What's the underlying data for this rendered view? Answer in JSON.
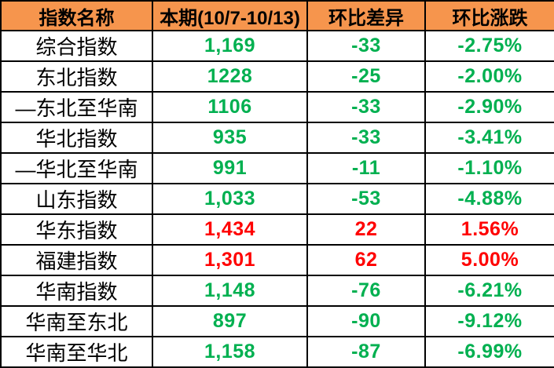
{
  "colors": {
    "header_bg": "#F6954D",
    "up": "#FF0000",
    "down": "#00B050",
    "grid": "#000000",
    "header_text": "#000000"
  },
  "chart_data": {
    "type": "table",
    "title": "",
    "columns": [
      "指数名称",
      "本期(10/7-10/13)",
      "环比差异",
      "环比涨跌"
    ],
    "rows": [
      {
        "name": "综合指数",
        "current": "1,169",
        "diff": "-33",
        "change": "-2.75%"
      },
      {
        "name": "东北指数",
        "current": "1228",
        "diff": "-25",
        "change": "-2.00%"
      },
      {
        "name": "—东北至华南",
        "current": "1106",
        "diff": "-33",
        "change": "-2.90%"
      },
      {
        "name": "华北指数",
        "current": "935",
        "diff": "-33",
        "change": "-3.41%"
      },
      {
        "name": "—华北至华南",
        "current": "991",
        "diff": "-11",
        "change": "-1.10%"
      },
      {
        "name": "山东指数",
        "current": "1,033",
        "diff": "-53",
        "change": "-4.88%"
      },
      {
        "name": "华东指数",
        "current": "1,434",
        "diff": "22",
        "change": "1.56%"
      },
      {
        "name": "福建指数",
        "current": "1,301",
        "diff": "62",
        "change": "5.00%"
      },
      {
        "name": "华南指数",
        "current": "1,148",
        "diff": "-76",
        "change": "-6.21%"
      },
      {
        "name": "华南至东北",
        "current": "897",
        "diff": "-90",
        "change": "-9.12%"
      },
      {
        "name": "华南至华北",
        "current": "1,158",
        "diff": "-87",
        "change": "-6.99%"
      }
    ]
  }
}
